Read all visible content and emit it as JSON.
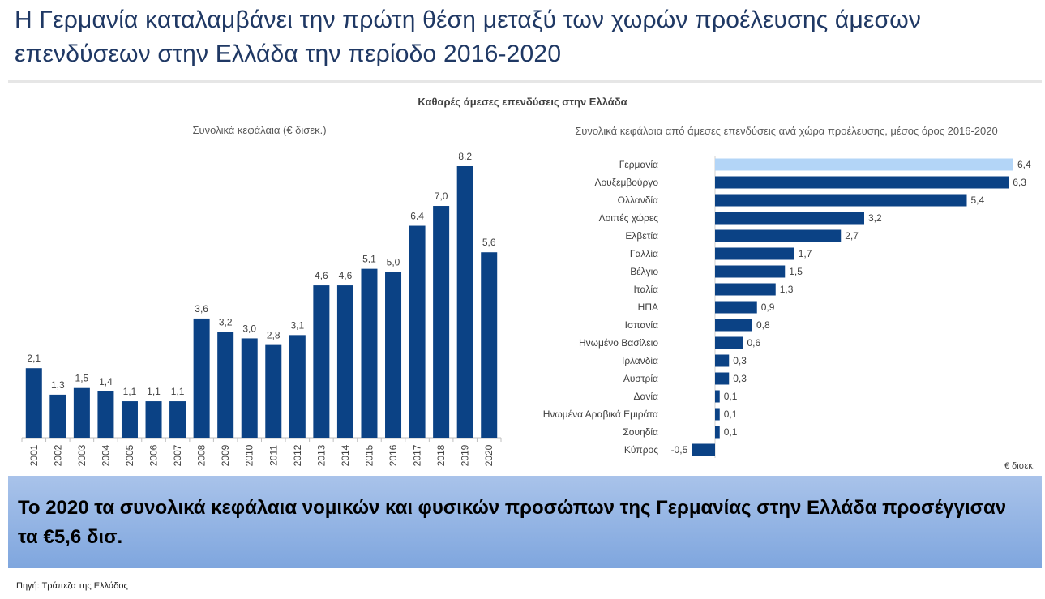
{
  "headline": "Η Γερμανία καταλαμβάνει την πρώτη θέση μεταξύ των χωρών προέλευσης άμεσων επενδύσεων στην Ελλάδα την περίοδο 2016-2020",
  "main_title": "Καθαρές άμεσες επενδύσεις στην Ελλάδα",
  "unit_note": "€ δισεκ.",
  "banner": "Το 2020 τα συνολικά κεφάλαια νομικών και φυσικών προσώπων της Γερμανίας στην Ελλάδα προσέγγισαν τα €5,6 δισ.",
  "source": "Πηγή: Τράπεζα της Ελλάδος",
  "colors": {
    "bar": "#0b4285",
    "highlight": "#b3d5f7",
    "headline": "#1f3864"
  },
  "chart_data": [
    {
      "type": "bar",
      "orientation": "vertical",
      "title": "Συνολικά κεφάλαια (€ δισεκ.)",
      "categories": [
        "2001",
        "2002",
        "2003",
        "2004",
        "2005",
        "2006",
        "2007",
        "2008",
        "2009",
        "2010",
        "2011",
        "2012",
        "2013",
        "2014",
        "2015",
        "2016",
        "2017",
        "2018",
        "2019",
        "2020"
      ],
      "values": [
        2.1,
        1.3,
        1.5,
        1.4,
        1.1,
        1.1,
        1.1,
        3.6,
        3.2,
        3.0,
        2.8,
        3.1,
        4.6,
        4.6,
        5.1,
        5.0,
        6.4,
        7.0,
        8.2,
        5.6
      ],
      "labels": [
        "2,1",
        "1,3",
        "1,5",
        "1,4",
        "1,1",
        "1,1",
        "1,1",
        "3,6",
        "3,2",
        "3,0",
        "2,8",
        "3,1",
        "4,6",
        "4,6",
        "5,1",
        "5,0",
        "6,4",
        "7,0",
        "8,2",
        "5,6"
      ],
      "ylim": [
        0,
        9
      ],
      "grid": false
    },
    {
      "type": "bar",
      "orientation": "horizontal",
      "title": "Συνολικά κεφάλαια από άμεσες επενδύσεις ανά χώρα προέλευσης, μέσος όρος 2016-2020",
      "categories": [
        "Γερμανία",
        "Λουξεμβούργο",
        "Ολλανδία",
        "Λοιπές χώρες",
        "Ελβετία",
        "Γαλλία",
        "Βέλγιο",
        "Ιταλία",
        "ΗΠΑ",
        "Ισπανία",
        "Ηνωμένο Βασίλειο",
        "Ιρλανδία",
        "Αυστρία",
        "Δανία",
        "Ηνωμένα Αραβικά Εμιράτα",
        "Σουηδία",
        "Κύπρος"
      ],
      "values": [
        6.4,
        6.3,
        5.4,
        3.2,
        2.7,
        1.7,
        1.5,
        1.3,
        0.9,
        0.8,
        0.6,
        0.3,
        0.3,
        0.1,
        0.1,
        0.1,
        -0.5
      ],
      "labels": [
        "6,4",
        "6,3",
        "5,4",
        "3,2",
        "2,7",
        "1,7",
        "1,5",
        "1,3",
        "0,9",
        "0,8",
        "0,6",
        "0,3",
        "0,3",
        "0,1",
        "0,1",
        "0,1",
        "-0,5"
      ],
      "highlight": "Γερμανία",
      "xlim": [
        -0.5,
        6.4
      ],
      "grid": false
    }
  ]
}
